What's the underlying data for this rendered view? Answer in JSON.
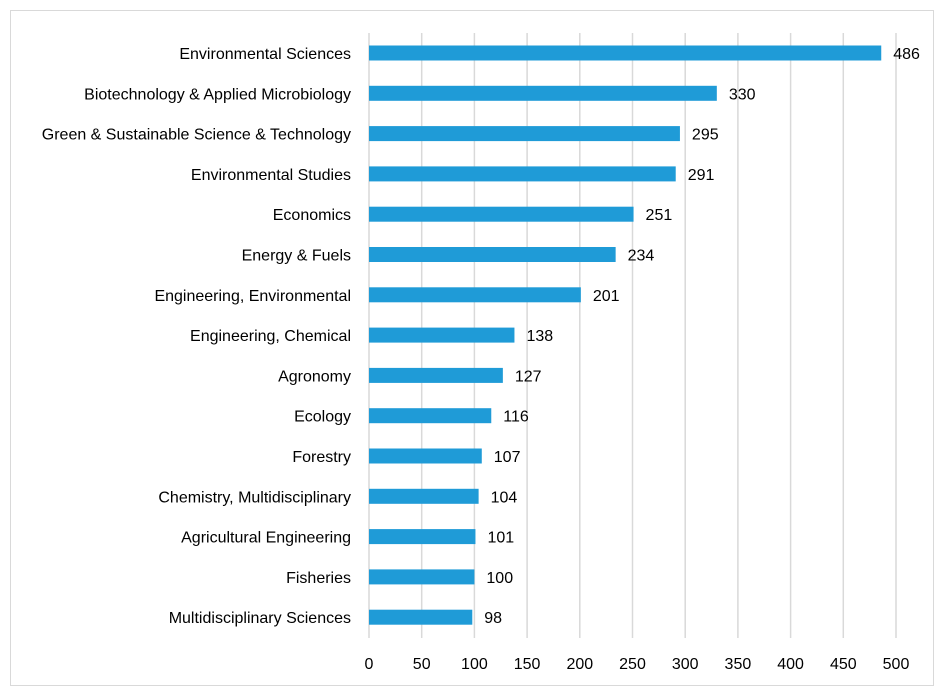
{
  "colors": {
    "bar": "#1f9bd7",
    "grid": "#d9d9d9",
    "frame": "#d9d9d9"
  },
  "chart_data": {
    "type": "bar",
    "orientation": "horizontal",
    "title": "",
    "xlabel": "",
    "ylabel": "",
    "xlim": [
      0,
      500
    ],
    "x_ticks": [
      0,
      50,
      100,
      150,
      200,
      250,
      300,
      350,
      400,
      450,
      500
    ],
    "grid": true,
    "data_labels": true,
    "categories": [
      "Environmental Sciences",
      "Biotechnology & Applied Microbiology",
      "Green & Sustainable Science & Technology",
      "Environmental Studies",
      "Economics",
      "Energy & Fuels",
      "Engineering, Environmental",
      "Engineering, Chemical",
      "Agronomy",
      "Ecology",
      "Forestry",
      "Chemistry, Multidisciplinary",
      "Agricultural Engineering",
      "Fisheries",
      "Multidisciplinary Sciences"
    ],
    "values": [
      486,
      330,
      295,
      291,
      251,
      234,
      201,
      138,
      127,
      116,
      107,
      104,
      101,
      100,
      98
    ]
  }
}
